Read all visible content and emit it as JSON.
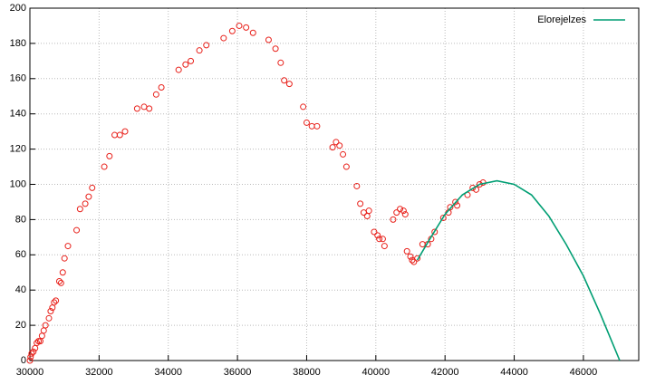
{
  "chart_data": {
    "type": "scatter",
    "xlim": [
      30000,
      47600
    ],
    "ylim": [
      0,
      200
    ],
    "xticks": [
      30000,
      32000,
      34000,
      36000,
      38000,
      40000,
      42000,
      44000,
      46000
    ],
    "yticks": [
      0,
      20,
      40,
      60,
      80,
      100,
      120,
      140,
      160,
      180,
      200
    ],
    "grid": true,
    "legend": "top-right",
    "series": [
      {
        "style": "points",
        "color": "#e8201a",
        "x": [
          30000,
          30020,
          30050,
          30100,
          30150,
          30200,
          30250,
          30300,
          30350,
          30400,
          30450,
          30550,
          30600,
          30650,
          30700,
          30750,
          30850,
          30900,
          30950,
          31000,
          31100,
          31350,
          31450,
          31600,
          31700,
          31800,
          32150,
          32300,
          32450,
          32600,
          32750,
          33100,
          33300,
          33450,
          33650,
          33800,
          34300,
          34500,
          34650,
          34900,
          35100,
          35600,
          35850,
          36050,
          36250,
          36450,
          36900,
          37100,
          37250,
          37350,
          37500,
          37900,
          38000,
          38150,
          38300,
          38750,
          38850,
          38950,
          39050,
          39150,
          39450,
          39550,
          39650,
          39750,
          39800,
          39950,
          40050,
          40100,
          40200,
          40250,
          40500,
          40600,
          40700,
          40800,
          40850,
          40900,
          41000,
          41050,
          41100,
          41200,
          41350,
          41500,
          41600,
          41700,
          41950,
          42100,
          42150,
          42300,
          42350,
          42650,
          42800,
          42900,
          43000,
          43100
        ],
        "values": [
          0,
          2,
          4,
          5,
          7,
          10,
          11,
          11,
          14,
          17,
          20,
          24,
          28,
          30,
          33,
          34,
          45,
          44,
          50,
          58,
          65,
          74,
          86,
          89,
          93,
          98,
          110,
          116,
          128,
          128,
          130,
          143,
          144,
          143,
          151,
          155,
          165,
          168,
          170,
          176,
          179,
          183,
          187,
          190,
          189,
          186,
          182,
          177,
          169,
          159,
          157,
          144,
          135,
          133,
          133,
          121,
          124,
          122,
          117,
          110,
          99,
          89,
          84,
          82,
          85,
          73,
          71,
          69,
          69,
          65,
          80,
          84,
          86,
          85,
          83,
          62,
          59,
          57,
          56,
          58,
          66,
          66,
          69,
          73,
          81,
          84,
          87,
          90,
          88,
          94,
          98,
          97,
          100,
          101
        ]
      },
      {
        "name": "Elorejelzes",
        "style": "line",
        "color": "#009e73",
        "x": [
          41200,
          41500,
          42000,
          42500,
          43000,
          43500,
          44000,
          44500,
          45000,
          45500,
          46000,
          46500,
          47050
        ],
        "values": [
          57,
          67,
          83,
          94,
          100,
          102,
          100,
          94,
          82,
          66,
          48,
          26,
          0
        ]
      }
    ]
  }
}
